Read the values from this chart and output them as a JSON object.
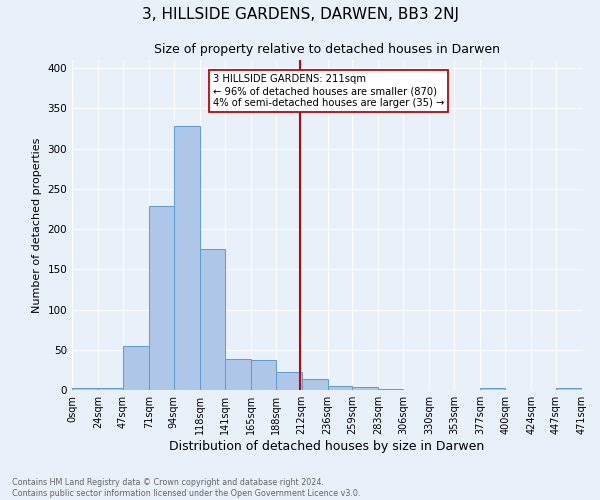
{
  "title": "3, HILLSIDE GARDENS, DARWEN, BB3 2NJ",
  "subtitle": "Size of property relative to detached houses in Darwen",
  "xlabel": "Distribution of detached houses by size in Darwen",
  "ylabel": "Number of detached properties",
  "bin_edges": [
    0,
    24,
    47,
    71,
    94,
    118,
    141,
    165,
    188,
    212,
    236,
    259,
    283,
    306,
    330,
    353,
    377,
    400,
    424,
    447,
    471
  ],
  "bin_labels": [
    "0sqm",
    "24sqm",
    "47sqm",
    "71sqm",
    "94sqm",
    "118sqm",
    "141sqm",
    "165sqm",
    "188sqm",
    "212sqm",
    "236sqm",
    "259sqm",
    "283sqm",
    "306sqm",
    "330sqm",
    "353sqm",
    "377sqm",
    "400sqm",
    "424sqm",
    "447sqm",
    "471sqm"
  ],
  "counts": [
    2,
    2,
    55,
    228,
    328,
    175,
    38,
    37,
    22,
    14,
    5,
    4,
    1,
    0,
    0,
    0,
    2,
    0,
    0,
    2
  ],
  "bar_color": "#aec6e8",
  "bar_edge_color": "#5b9bd5",
  "property_line_x": 211,
  "property_line_color": "#cc0000",
  "annotation_text": "3 HILLSIDE GARDENS: 211sqm\n← 96% of detached houses are smaller (870)\n4% of semi-detached houses are larger (35) →",
  "annotation_box_color": "#ffffff",
  "annotation_box_edge_color": "#cc0000",
  "ylim": [
    0,
    410
  ],
  "yticks": [
    0,
    50,
    100,
    150,
    200,
    250,
    300,
    350,
    400
  ],
  "footer_text": "Contains HM Land Registry data © Crown copyright and database right 2024.\nContains public sector information licensed under the Open Government Licence v3.0.",
  "background_color": "#e8f0fa",
  "grid_color": "#ffffff",
  "title_fontsize": 11,
  "subtitle_fontsize": 9,
  "xlabel_fontsize": 9,
  "ylabel_fontsize": 8,
  "tick_fontsize": 7
}
